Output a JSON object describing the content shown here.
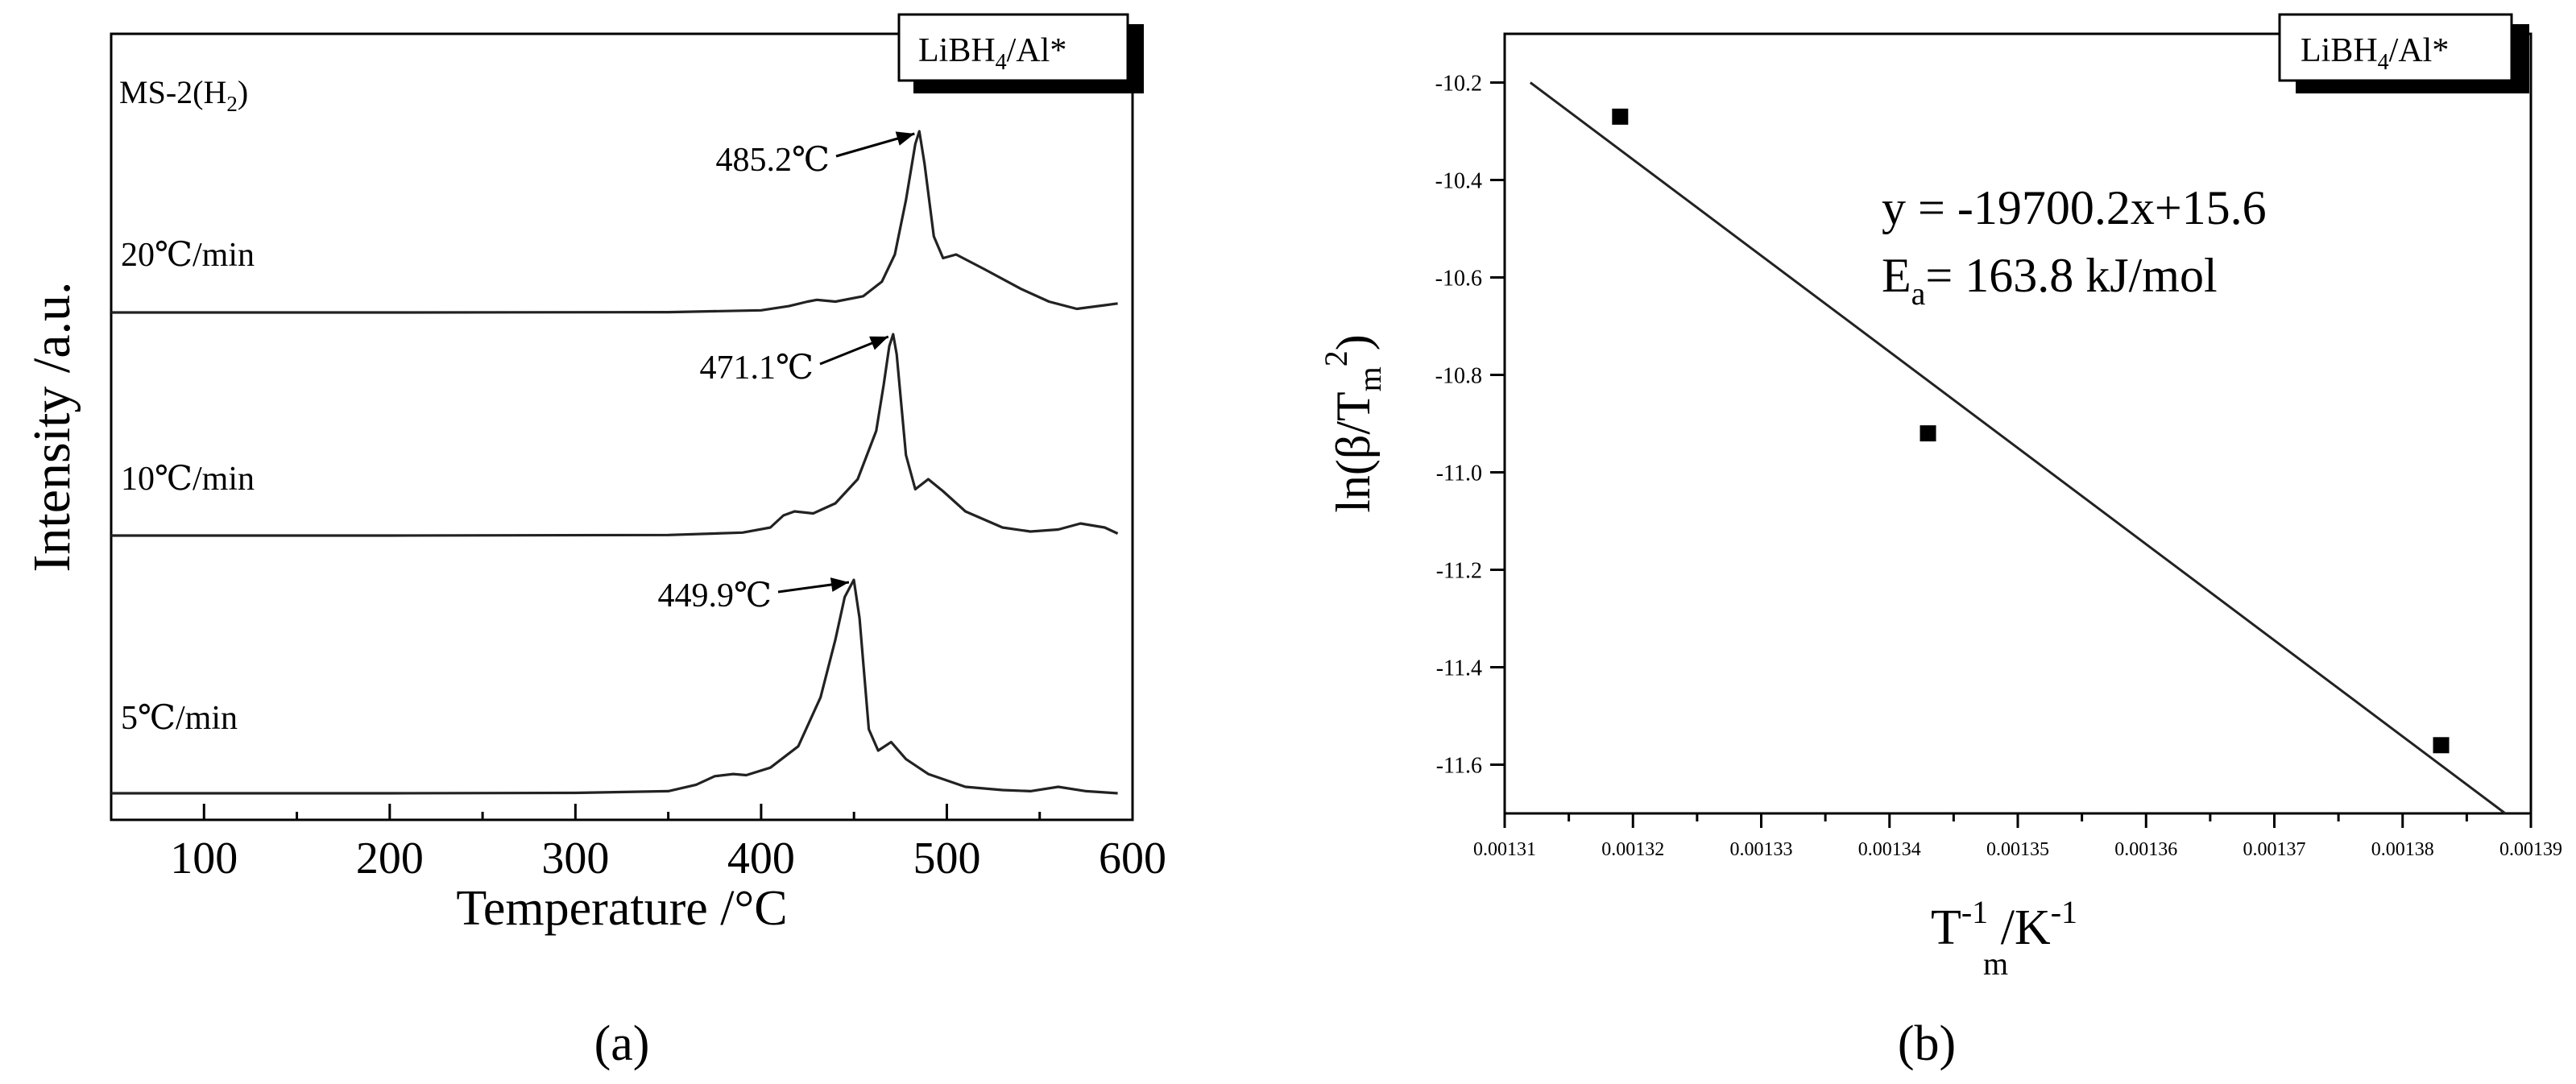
{
  "chart_data": [
    {
      "type": "line",
      "panel_label": "(a)",
      "xlabel": "Temperature /°C",
      "ylabel": "Intensity /a.u.",
      "xlim": [
        50,
        600
      ],
      "xticks": [
        "100",
        "200",
        "300",
        "400",
        "500",
        "600"
      ],
      "legend_box": {
        "main": "LiBH",
        "sub": "4",
        "suffix": "/Al*"
      },
      "gas_label": {
        "main": "MS-2(H",
        "sub": "2",
        "suffix": ")"
      },
      "series": [
        {
          "name": "20℃/min",
          "peak_label": "485.2℃",
          "peak_x": 485.2,
          "x": [
            50,
            200,
            350,
            400,
            415,
            425,
            430,
            440,
            455,
            465,
            472,
            478,
            483,
            485.2,
            488,
            493,
            498,
            505,
            520,
            540,
            555,
            570,
            585,
            592
          ],
          "y": [
            0.0,
            0.0,
            0.002,
            0.012,
            0.035,
            0.06,
            0.07,
            0.06,
            0.09,
            0.17,
            0.32,
            0.62,
            0.93,
            1.0,
            0.82,
            0.42,
            0.3,
            0.32,
            0.24,
            0.13,
            0.06,
            0.02,
            0.04,
            0.05
          ]
        },
        {
          "name": "10℃/min",
          "peak_label": "471.1℃",
          "peak_x": 471.1,
          "x": [
            50,
            200,
            350,
            390,
            405,
            412,
            418,
            428,
            440,
            452,
            462,
            466,
            469,
            471.1,
            473,
            478,
            483,
            490,
            498,
            510,
            530,
            545,
            560,
            572,
            585,
            592
          ],
          "y": [
            0.0,
            0.0,
            0.003,
            0.015,
            0.04,
            0.1,
            0.12,
            0.11,
            0.16,
            0.28,
            0.52,
            0.75,
            0.94,
            1.0,
            0.9,
            0.4,
            0.23,
            0.28,
            0.22,
            0.12,
            0.04,
            0.02,
            0.03,
            0.06,
            0.04,
            0.01
          ]
        },
        {
          "name": "5℃/min",
          "peak_label": "449.9℃",
          "peak_x": 449.9,
          "x": [
            50,
            200,
            300,
            350,
            365,
            375,
            385,
            392,
            405,
            420,
            432,
            440,
            445,
            449.9,
            453,
            458,
            463,
            470,
            478,
            490,
            510,
            530,
            545,
            560,
            575,
            592
          ],
          "y": [
            0.0,
            0.0,
            0.002,
            0.01,
            0.04,
            0.08,
            0.09,
            0.085,
            0.12,
            0.22,
            0.45,
            0.72,
            0.92,
            1.0,
            0.82,
            0.3,
            0.2,
            0.24,
            0.16,
            0.09,
            0.03,
            0.015,
            0.01,
            0.03,
            0.01,
            0.0
          ]
        }
      ]
    },
    {
      "type": "scatter",
      "panel_label": "(b)",
      "xlabel": {
        "main": "T",
        "sub": "m",
        "sup": "-1",
        "rest": " /K",
        "sup2": "-1"
      },
      "ylabel": {
        "pre": "ln(β/T",
        "sub": "m",
        "sup": "2",
        "post": ")"
      },
      "xlim": [
        0.00131,
        0.00139
      ],
      "ylim": [
        -11.7,
        -10.1
      ],
      "xticks": [
        "0.00131",
        "0.00132",
        "0.00133",
        "0.00134",
        "0.00135",
        "0.00136",
        "0.00137",
        "0.00138",
        "0.00139"
      ],
      "yticks": [
        "-10.2",
        "-10.4",
        "-10.6",
        "-10.8",
        "-11.0",
        "-11.2",
        "-11.4",
        "-11.6"
      ],
      "legend_box": {
        "main": "LiBH",
        "sub": "4",
        "suffix": "/Al*"
      },
      "equation": "y = -19700.2x+15.6",
      "activation": {
        "main": "E",
        "sub": "a",
        "rest": "= 163.8 kJ/mol"
      },
      "points": [
        {
          "x": 0.001319,
          "y": -10.27
        },
        {
          "x": 0.001343,
          "y": -10.92
        },
        {
          "x": 0.001383,
          "y": -11.56
        }
      ],
      "fit_line": {
        "x": [
          0.001312,
          0.001388
        ],
        "y": [
          -10.2,
          -11.7
        ]
      }
    }
  ]
}
